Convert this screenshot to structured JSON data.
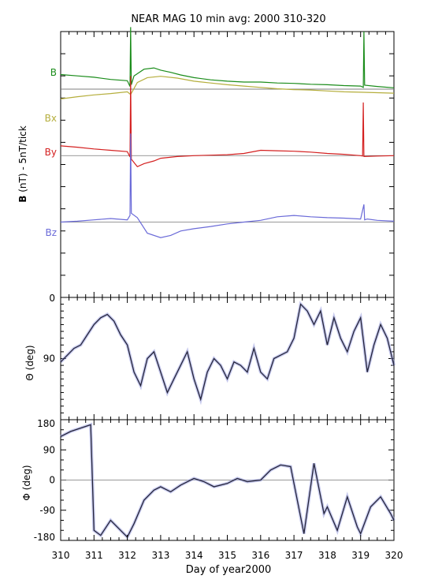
{
  "title": "NEAR MAG 10 min avg: 2000 310-320",
  "colors": {
    "B": "#1a8c1a",
    "Bx": "#b5ae3c",
    "By": "#d42020",
    "Bz": "#6a6ad8",
    "theta": "#24243a",
    "theta_fill": "#9aa0e0",
    "phi": "#24243a",
    "phi_fill": "#9aa0e0",
    "axis": "#000000",
    "refline": "#777777"
  },
  "chart_data": [
    {
      "type": "line",
      "panel": "magnetic-field",
      "ylabel_bold": "B",
      "ylabel_rest": "  (nT) - 5nT/tick",
      "xlim": [
        310,
        320
      ],
      "ylim": [
        -25,
        35
      ],
      "y_tick_step": 5,
      "y_tick_labels": [],
      "series_labels": [
        "B",
        "Bx",
        "By",
        "Bz"
      ],
      "series": [
        {
          "key": "B",
          "offset": 0,
          "ref": 22,
          "x": [
            310,
            310.5,
            311,
            311.5,
            312,
            312.08,
            312.1,
            312.12,
            312.2,
            312.5,
            312.8,
            313,
            313.3,
            313.6,
            314,
            314.5,
            315,
            315.5,
            316,
            316.5,
            317,
            317.5,
            318,
            318.5,
            319,
            319.08,
            319.1,
            319.12,
            319.5,
            320
          ],
          "y": [
            25.3,
            25,
            24.7,
            24.2,
            23.9,
            22.6,
            36,
            23,
            25,
            26.5,
            26.8,
            26.3,
            25.8,
            25.2,
            24.6,
            24.1,
            23.8,
            23.6,
            23.6,
            23.4,
            23.3,
            23.1,
            23,
            22.8,
            22.7,
            22.4,
            35,
            22.9,
            22.6,
            22.3
          ]
        },
        {
          "key": "Bx",
          "offset": 0,
          "ref": 22,
          "x": [
            310,
            310.5,
            311,
            311.5,
            312,
            312.1,
            312.3,
            312.6,
            313,
            313.5,
            314,
            314.5,
            315,
            315.5,
            316,
            316.5,
            317,
            317.5,
            318,
            318.5,
            319,
            319.5,
            320
          ],
          "y": [
            19.8,
            20.3,
            20.7,
            21,
            21.4,
            20.8,
            23.5,
            24.6,
            24.9,
            24.5,
            23.8,
            23.4,
            23,
            22.7,
            22.4,
            22.1,
            21.9,
            21.8,
            21.6,
            21.4,
            21.3,
            21.2,
            21.1
          ]
        },
        {
          "key": "By",
          "offset": 0,
          "ref": 7,
          "x": [
            310,
            310.5,
            311,
            311.5,
            312,
            312.08,
            312.1,
            312.12,
            312.3,
            312.5,
            312.8,
            313,
            313.5,
            314,
            314.5,
            315,
            315.5,
            316,
            316.5,
            317,
            317.5,
            318,
            318.5,
            319,
            319.06,
            319.08,
            319.1,
            319.5,
            320
          ],
          "y": [
            9.2,
            8.9,
            8.5,
            8.2,
            7.9,
            6.7,
            25,
            6.2,
            4.5,
            5.2,
            5.8,
            6.4,
            6.8,
            7,
            7.1,
            7.2,
            7.5,
            8.2,
            8.1,
            8,
            7.8,
            7.5,
            7.3,
            7,
            6.9,
            19,
            6.8,
            6.9,
            7
          ]
        },
        {
          "key": "Bz",
          "offset": 0,
          "ref": -8,
          "x": [
            310,
            310.5,
            311,
            311.5,
            312,
            312.08,
            312.1,
            312.12,
            312.3,
            312.6,
            313,
            313.3,
            313.6,
            314,
            314.5,
            315,
            315.5,
            316,
            316.5,
            317,
            317.5,
            318,
            318.5,
            319,
            319.1,
            319.12,
            319.2,
            319.5,
            320
          ],
          "y": [
            -8,
            -7.8,
            -7.5,
            -7.2,
            -7.5,
            -6.5,
            12,
            -6,
            -7,
            -10.5,
            -11.5,
            -11,
            -10,
            -9.5,
            -9,
            -8.4,
            -8,
            -7.6,
            -6.8,
            -6.5,
            -6.8,
            -7,
            -7.1,
            -7.3,
            -4,
            -7.5,
            -7.3,
            -7.6,
            -7.8
          ]
        }
      ]
    },
    {
      "type": "line",
      "panel": "theta",
      "ylabel": "Θ (deg)",
      "xlim": [
        310,
        320
      ],
      "ylim": [
        180,
        0
      ],
      "y_ticks": [
        0,
        90
      ],
      "x": [
        310,
        310.2,
        310.4,
        310.6,
        310.8,
        311,
        311.2,
        311.4,
        311.6,
        311.8,
        312,
        312.2,
        312.4,
        312.6,
        312.8,
        313,
        313.2,
        313.4,
        313.6,
        313.8,
        314,
        314.2,
        314.4,
        314.6,
        314.8,
        315,
        315.2,
        315.4,
        315.6,
        315.8,
        316,
        316.2,
        316.4,
        316.6,
        316.8,
        317,
        317.2,
        317.4,
        317.6,
        317.8,
        318,
        318.2,
        318.4,
        318.6,
        318.8,
        319,
        319.2,
        319.4,
        319.6,
        319.8,
        320
      ],
      "y": [
        95,
        85,
        75,
        70,
        55,
        40,
        30,
        25,
        35,
        55,
        70,
        110,
        130,
        90,
        80,
        110,
        140,
        120,
        100,
        80,
        120,
        150,
        110,
        90,
        100,
        120,
        95,
        100,
        110,
        75,
        110,
        120,
        90,
        85,
        80,
        60,
        10,
        20,
        40,
        20,
        70,
        30,
        60,
        80,
        50,
        30,
        110,
        70,
        40,
        60,
        100
      ]
    },
    {
      "type": "line",
      "panel": "phi",
      "ylabel": "Φ (deg)",
      "xlim": [
        310,
        320
      ],
      "ylim": [
        -180,
        180
      ],
      "y_ticks": [
        180,
        90,
        0,
        -90,
        -180
      ],
      "x": [
        310,
        310.3,
        310.6,
        310.9,
        311,
        311.2,
        311.5,
        311.8,
        312,
        312.2,
        312.5,
        312.8,
        313,
        313.3,
        313.6,
        314,
        314.3,
        314.6,
        315,
        315.3,
        315.6,
        316,
        316.3,
        316.6,
        316.9,
        317,
        317.3,
        317.6,
        317.9,
        318,
        318.3,
        318.6,
        318.9,
        319,
        319.3,
        319.6,
        319.9,
        320
      ],
      "y": [
        130,
        145,
        155,
        165,
        -150,
        -165,
        -120,
        -150,
        -170,
        -130,
        -60,
        -30,
        -20,
        -35,
        -15,
        5,
        -5,
        -20,
        -10,
        5,
        -5,
        0,
        30,
        45,
        40,
        -10,
        -160,
        50,
        -100,
        -80,
        -150,
        -50,
        -140,
        -160,
        -80,
        -50,
        -100,
        -120
      ]
    }
  ],
  "xaxis": {
    "label": "Day of year2000",
    "ticks": [
      310,
      311,
      312,
      313,
      314,
      315,
      316,
      317,
      318,
      319,
      320
    ],
    "tick_labels": [
      "310",
      "311",
      "312",
      "313",
      "314",
      "315",
      "316",
      "317",
      "318",
      "319",
      "320"
    ]
  }
}
